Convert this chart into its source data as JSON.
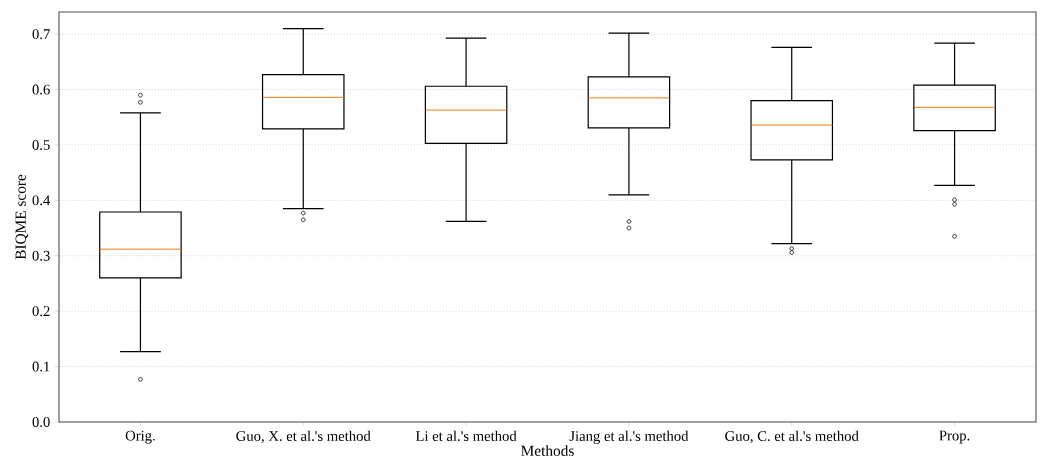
{
  "chart_data": {
    "type": "box",
    "xlabel": "Methods",
    "ylabel": "BIQME score",
    "categories": [
      "Orig.",
      "Guo, X. et al.'s method",
      "Li et al.'s method",
      "Jiang et al.'s method",
      "Guo, C. et al.'s method",
      "Prop."
    ],
    "ylim": [
      0,
      0.74
    ],
    "yticks": [
      {
        "value": 0,
        "label": "0.0"
      },
      0.1,
      0.2,
      0.3,
      0.4,
      0.5,
      0.6,
      0.7
    ],
    "grid": "y",
    "marker": "circle",
    "series": [
      {
        "color": "#000000",
        "boxes": [
          {
            "low": 0.127,
            "q1": 0.26,
            "median": 0.312,
            "q3": 0.379,
            "high": 0.558,
            "outliers": [
              0.59,
              0.577,
              0.077
            ]
          },
          {
            "low": 0.385,
            "q1": 0.529,
            "median": 0.586,
            "q3": 0.627,
            "high": 0.71,
            "outliers": [
              0.377,
              0.365
            ]
          },
          {
            "low": 0.362,
            "q1": 0.503,
            "median": 0.563,
            "q3": 0.606,
            "high": 0.693
          },
          {
            "low": 0.41,
            "q1": 0.531,
            "median": 0.585,
            "q3": 0.623,
            "high": 0.702,
            "outliers": [
              0.362,
              0.35
            ]
          },
          {
            "low": 0.322,
            "q1": 0.473,
            "median": 0.536,
            "q3": 0.58,
            "high": 0.676,
            "outliers": [
              0.313,
              0.306
            ]
          },
          {
            "low": 0.427,
            "q1": 0.526,
            "median": 0.568,
            "q3": 0.608,
            "high": 0.684,
            "outliers": [
              0.401,
              0.393,
              0.335
            ]
          }
        ]
      }
    ]
  }
}
